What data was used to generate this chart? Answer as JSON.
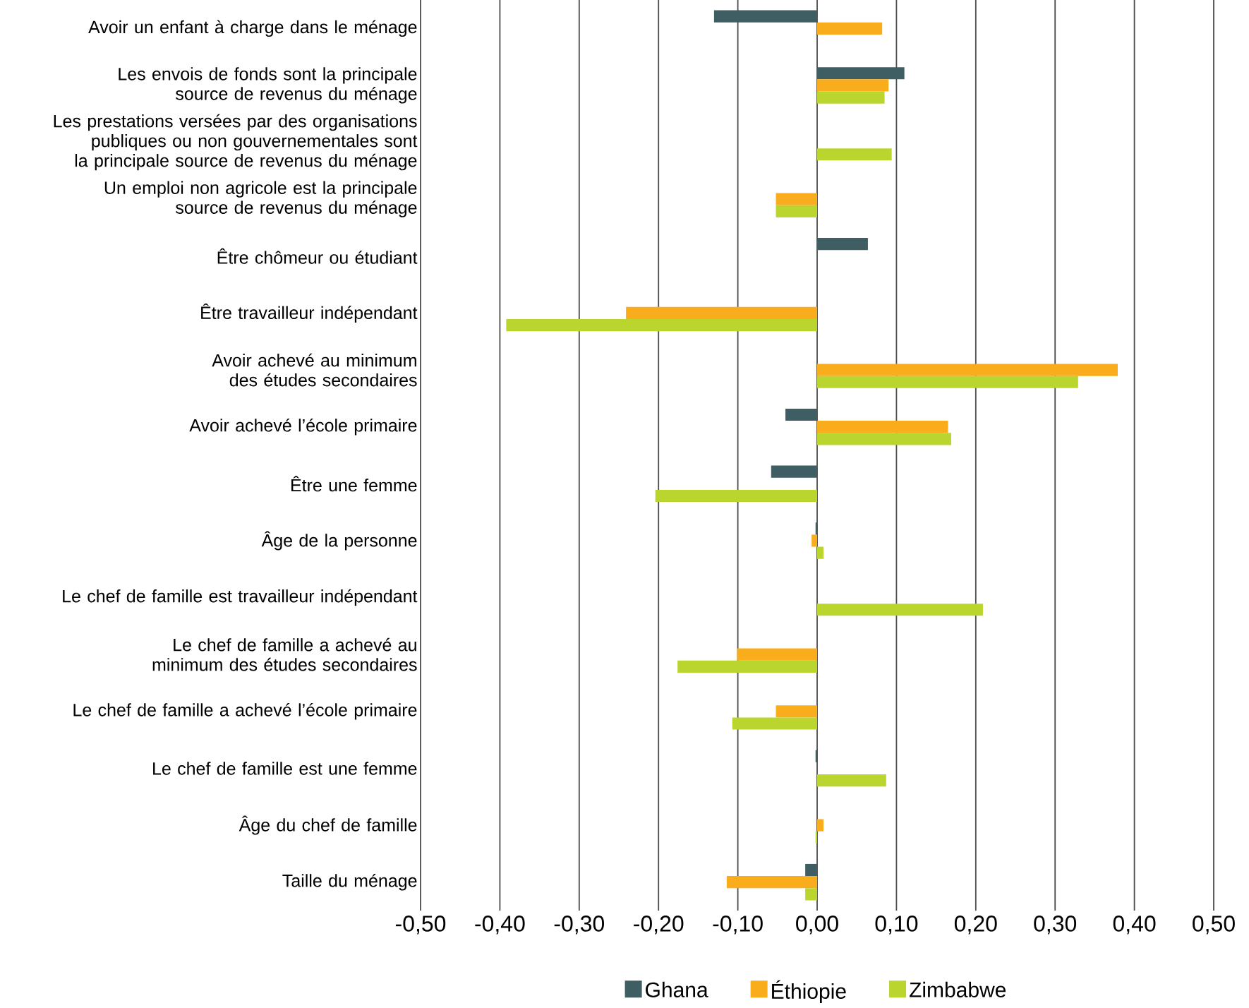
{
  "chart_data": {
    "type": "bar",
    "orientation": "horizontal",
    "categories": [
      "Avoir un enfant à charge dans le ménage",
      "Les envois de fonds sont la principale source de revenus du ménage",
      "Les prestations versées par des organisations publiques ou non gouvernementales sont la principale source de revenus du ménage",
      "Un emploi non agricole est la principale source de revenus du ménage",
      "Être chômeur ou étudiant",
      "Être travailleur indépendant",
      "Avoir achevé au minimum des études secondaires",
      "Avoir achevé l’école primaire",
      "Être une femme",
      "Âge de la personne",
      "Le chef de famille est travailleur indépendant",
      "Le chef de famille a achevé au minimum des études secondaires",
      "Le chef de famille a achevé l’école primaire",
      "Le chef de famille est une femme",
      "Âge du chef de famille",
      "Taille du ménage"
    ],
    "series": [
      {
        "name": "Ghana",
        "color": "#3f5e63",
        "values": [
          -0.13,
          0.11,
          null,
          null,
          0.064,
          null,
          null,
          -0.04,
          -0.058,
          -0.002,
          null,
          null,
          null,
          -0.002,
          null,
          -0.015
        ]
      },
      {
        "name": "Éthiopie",
        "color": "#f9ad1c",
        "values": [
          0.082,
          0.09,
          null,
          -0.052,
          null,
          -0.241,
          0.379,
          0.165,
          null,
          -0.007,
          null,
          -0.101,
          -0.052,
          null,
          0.008,
          -0.114
        ]
      },
      {
        "name": "Zimbabwe",
        "color": "#bad52e",
        "values": [
          null,
          0.085,
          0.094,
          -0.052,
          null,
          -0.392,
          0.329,
          0.169,
          -0.204,
          0.008,
          0.209,
          -0.176,
          -0.107,
          0.087,
          -0.002,
          -0.015
        ]
      }
    ],
    "xlim": [
      -0.5,
      0.5
    ],
    "xticks": [
      {
        "value": -0.5,
        "label": "-0,50"
      },
      {
        "value": -0.4,
        "label": "-0,40"
      },
      {
        "value": -0.3,
        "label": "-0,30"
      },
      {
        "value": -0.2,
        "label": "-0,20"
      },
      {
        "value": -0.1,
        "label": "-0,10"
      },
      {
        "value": 0,
        "label": "0,00"
      },
      {
        "value": 0.1,
        "label": "0,10"
      },
      {
        "value": 0.2,
        "label": "0,20"
      },
      {
        "value": 0.3,
        "label": "0,30"
      },
      {
        "value": 0.4,
        "label": "0,40"
      },
      {
        "value": 0.5,
        "label": "0,50"
      }
    ],
    "grid": "x",
    "legend": "bottom"
  }
}
